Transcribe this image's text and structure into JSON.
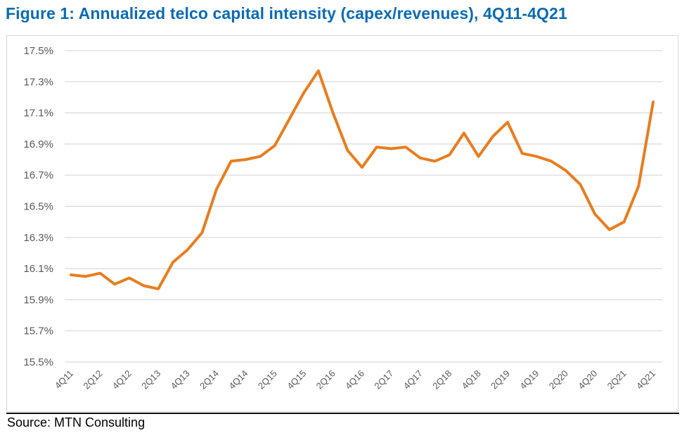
{
  "figure": {
    "title": "Figure 1: Annualized telco capital intensity (capex/revenues), 4Q11-4Q21",
    "source": "Source: MTN Consulting"
  },
  "colors": {
    "title": "#0a6bb5",
    "line": "#e87d1e",
    "grid": "#d9d9d9",
    "tick_text": "#595959"
  },
  "chart_data": {
    "type": "line",
    "title": "Figure 1: Annualized telco capital intensity (capex/revenues), 4Q11-4Q21",
    "xlabel": "",
    "ylabel": "",
    "ylim": [
      15.5,
      17.5
    ],
    "y_ticks": [
      15.5,
      15.7,
      15.9,
      16.1,
      16.3,
      16.5,
      16.7,
      16.9,
      17.1,
      17.3,
      17.5
    ],
    "y_tick_labels": [
      "15.5%",
      "15.7%",
      "15.9%",
      "16.1%",
      "16.3%",
      "16.5%",
      "16.7%",
      "16.9%",
      "17.1%",
      "17.3%",
      "17.5%"
    ],
    "grid": true,
    "legend": "none",
    "x": [
      "4Q11",
      "1Q12",
      "2Q12",
      "3Q12",
      "4Q12",
      "1Q13",
      "2Q13",
      "3Q13",
      "4Q13",
      "1Q14",
      "2Q14",
      "3Q14",
      "4Q14",
      "1Q15",
      "2Q15",
      "3Q15",
      "4Q15",
      "1Q16",
      "2Q16",
      "3Q16",
      "4Q16",
      "1Q17",
      "2Q17",
      "3Q17",
      "4Q17",
      "1Q18",
      "2Q18",
      "3Q18",
      "4Q18",
      "1Q19",
      "2Q19",
      "3Q19",
      "4Q19",
      "1Q20",
      "2Q20",
      "3Q20",
      "4Q20",
      "1Q21",
      "2Q21",
      "3Q21",
      "4Q21"
    ],
    "x_tick_labels": [
      "4Q11",
      "2Q12",
      "4Q12",
      "2Q13",
      "4Q13",
      "2Q14",
      "4Q14",
      "2Q15",
      "4Q15",
      "2Q16",
      "4Q16",
      "2Q17",
      "4Q17",
      "2Q18",
      "4Q18",
      "2Q19",
      "4Q19",
      "2Q20",
      "4Q20",
      "2Q21",
      "4Q21"
    ],
    "series": [
      {
        "name": "Capital intensity (capex/revenues), %",
        "values": [
          16.06,
          16.05,
          16.07,
          16.0,
          16.04,
          15.99,
          15.97,
          16.14,
          16.22,
          16.33,
          16.61,
          16.79,
          16.8,
          16.82,
          16.89,
          17.06,
          17.23,
          17.37,
          17.1,
          16.86,
          16.75,
          16.88,
          16.87,
          16.88,
          16.81,
          16.79,
          16.83,
          16.97,
          16.82,
          16.95,
          17.04,
          16.84,
          16.82,
          16.79,
          16.73,
          16.64,
          16.45,
          16.35,
          16.4,
          16.63,
          17.17
        ]
      }
    ]
  }
}
